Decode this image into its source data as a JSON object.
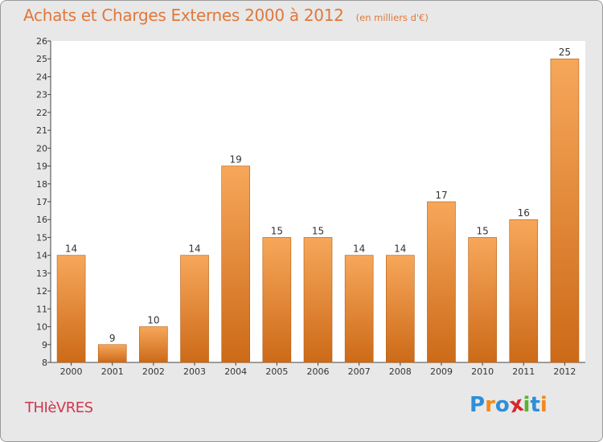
{
  "header": {
    "title": "Achats et Charges Externes 2000 à 2012",
    "subtitle": "(en milliers d'€)"
  },
  "commune": "THIèVRES",
  "logo": {
    "text": "Proxiti",
    "colors": [
      "#2e8fd8",
      "#f08a1c",
      "#2e8fd8",
      "#d8262e",
      "#58b430",
      "#2e8fd8",
      "#f08a1c"
    ]
  },
  "colors": {
    "bar_top": "#f7a75a",
    "bar_bottom": "#cc6a18",
    "title": "#e0783a",
    "commune": "#d0364e",
    "plot_background": "#ffffff"
  },
  "chart_data": {
    "type": "bar",
    "title": "Achats et Charges Externes 2000 à 2012",
    "subtitle": "(en milliers d'€)",
    "categories": [
      "2000",
      "2001",
      "2002",
      "2003",
      "2004",
      "2005",
      "2006",
      "2007",
      "2008",
      "2009",
      "2010",
      "2011",
      "2012"
    ],
    "values": [
      14,
      9,
      10,
      14,
      19,
      15,
      15,
      14,
      14,
      17,
      15,
      16,
      25
    ],
    "ylim": [
      8,
      26
    ],
    "yticks": [
      8,
      9,
      10,
      11,
      12,
      13,
      14,
      15,
      16,
      17,
      18,
      19,
      20,
      21,
      22,
      23,
      24,
      25,
      26
    ],
    "grid": false,
    "data_labels": true
  }
}
